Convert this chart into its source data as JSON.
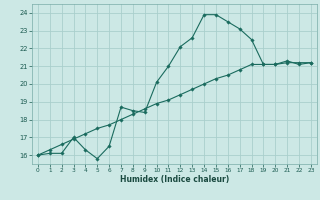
{
  "xlabel": "Humidex (Indice chaleur)",
  "bg_color": "#cce8e5",
  "grid_color": "#aacfcc",
  "line_color": "#1a6b5e",
  "xlim": [
    -0.5,
    23.5
  ],
  "ylim": [
    15.5,
    24.5
  ],
  "xtick_labels": [
    "0",
    "1",
    "2",
    "3",
    "4",
    "5",
    "6",
    "7",
    "8",
    "9",
    "10",
    "11",
    "12",
    "13",
    "14",
    "15",
    "16",
    "17",
    "18",
    "19",
    "20",
    "21",
    "22",
    "23"
  ],
  "ytick_values": [
    16,
    17,
    18,
    19,
    20,
    21,
    22,
    23,
    24
  ],
  "line1_x": [
    0,
    1,
    2,
    3,
    4,
    5,
    6,
    7,
    8,
    9,
    10,
    11,
    12,
    13,
    14,
    15,
    16,
    17,
    18,
    19,
    20,
    21,
    22,
    23
  ],
  "line1_y": [
    16.0,
    16.1,
    16.1,
    17.0,
    16.3,
    15.8,
    16.5,
    18.7,
    18.5,
    18.4,
    20.1,
    21.0,
    22.1,
    22.6,
    23.9,
    23.9,
    23.5,
    23.1,
    22.5,
    21.1,
    21.1,
    21.3,
    21.1,
    21.2
  ],
  "line2_x": [
    0,
    1,
    2,
    3,
    4,
    5,
    6,
    7,
    8,
    9,
    10,
    11,
    12,
    13,
    14,
    15,
    16,
    17,
    18,
    19,
    20,
    21,
    22,
    23
  ],
  "line2_y": [
    16.0,
    16.3,
    16.6,
    16.9,
    17.2,
    17.5,
    17.7,
    18.0,
    18.3,
    18.6,
    18.9,
    19.1,
    19.4,
    19.7,
    20.0,
    20.3,
    20.5,
    20.8,
    21.1,
    21.1,
    21.1,
    21.2,
    21.2,
    21.2
  ]
}
